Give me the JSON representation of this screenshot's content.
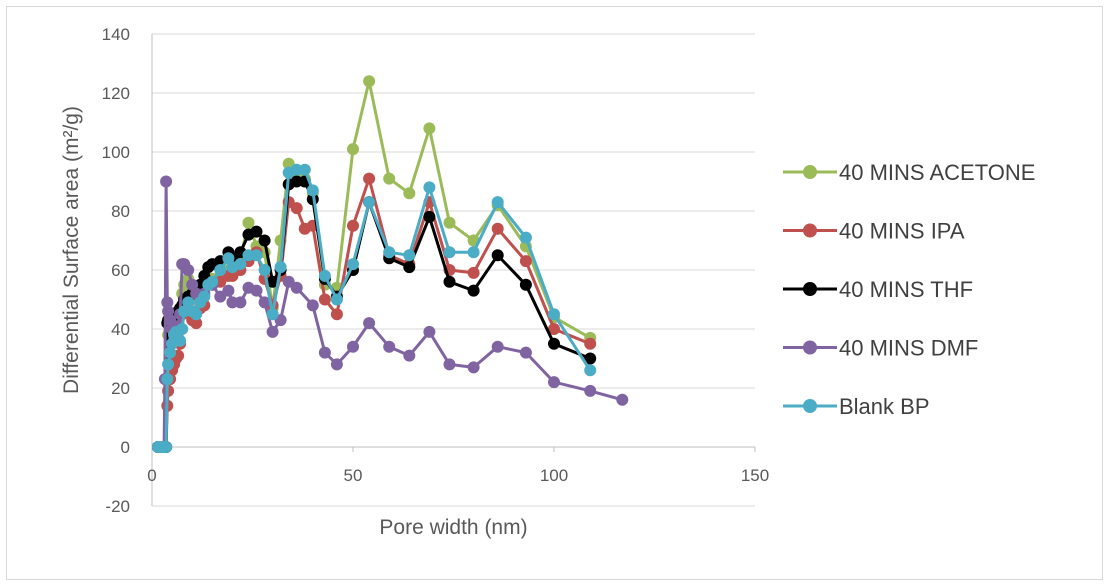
{
  "chart_data": {
    "type": "line",
    "title": "",
    "xlabel": "Pore width (nm)",
    "ylabel": "Differential Surface area (m²/g)",
    "xlim": [
      0,
      150
    ],
    "ylim": [
      -20,
      140
    ],
    "xticks": [
      0,
      50,
      100,
      150
    ],
    "yticks": [
      -20,
      0,
      20,
      40,
      60,
      80,
      100,
      120,
      140
    ],
    "grid": "horizontal",
    "legend_position": "right",
    "series": [
      {
        "name": "40 MINS ACETONE",
        "color": "#9bbb59",
        "points": [
          [
            1.5,
            0
          ],
          [
            2,
            0
          ],
          [
            2.5,
            0
          ],
          [
            3,
            0
          ],
          [
            3.5,
            0
          ],
          [
            3.8,
            23
          ],
          [
            4,
            38
          ],
          [
            4.5,
            42
          ],
          [
            5,
            45
          ],
          [
            5.5,
            44
          ],
          [
            6,
            44
          ],
          [
            6.5,
            45
          ],
          [
            7,
            47
          ],
          [
            7.5,
            52
          ],
          [
            8,
            55
          ],
          [
            9,
            57
          ],
          [
            10,
            50
          ],
          [
            11,
            50
          ],
          [
            12,
            51
          ],
          [
            13,
            53
          ],
          [
            14,
            57
          ],
          [
            15,
            57
          ],
          [
            17,
            58
          ],
          [
            19,
            60
          ],
          [
            20,
            58
          ],
          [
            22,
            64
          ],
          [
            24,
            76
          ],
          [
            26,
            68
          ],
          [
            28,
            66
          ],
          [
            30,
            47
          ],
          [
            32,
            70
          ],
          [
            34,
            96
          ],
          [
            36,
            93
          ],
          [
            38,
            91
          ],
          [
            40,
            86
          ],
          [
            43,
            55
          ],
          [
            46,
            54
          ],
          [
            50,
            101
          ],
          [
            54,
            124
          ],
          [
            59,
            91
          ],
          [
            64,
            86
          ],
          [
            69,
            108
          ],
          [
            74,
            76
          ],
          [
            80,
            70
          ],
          [
            86,
            82
          ],
          [
            93,
            68
          ],
          [
            100,
            44
          ],
          [
            109,
            37
          ]
        ]
      },
      {
        "name": "40 MINS IPA",
        "color": "#c0504d",
        "points": [
          [
            1.5,
            0
          ],
          [
            2,
            0
          ],
          [
            2.5,
            0
          ],
          [
            3,
            0
          ],
          [
            3.5,
            0
          ],
          [
            3.8,
            14
          ],
          [
            4,
            19
          ],
          [
            4.5,
            23
          ],
          [
            5,
            26
          ],
          [
            5.5,
            28
          ],
          [
            6,
            30
          ],
          [
            6.5,
            31
          ],
          [
            7,
            35
          ],
          [
            7.5,
            45
          ],
          [
            8,
            50
          ],
          [
            9,
            47
          ],
          [
            10,
            43
          ],
          [
            11,
            42
          ],
          [
            12,
            47
          ],
          [
            13,
            48
          ],
          [
            14,
            55
          ],
          [
            15,
            55
          ],
          [
            17,
            56
          ],
          [
            19,
            58
          ],
          [
            20,
            58
          ],
          [
            22,
            60
          ],
          [
            24,
            63
          ],
          [
            26,
            66
          ],
          [
            28,
            57
          ],
          [
            30,
            48
          ],
          [
            32,
            58
          ],
          [
            34,
            83
          ],
          [
            36,
            81
          ],
          [
            38,
            74
          ],
          [
            40,
            75
          ],
          [
            43,
            50
          ],
          [
            46,
            45
          ],
          [
            50,
            75
          ],
          [
            54,
            91
          ],
          [
            59,
            65
          ],
          [
            64,
            62
          ],
          [
            69,
            83
          ],
          [
            74,
            60
          ],
          [
            80,
            59
          ],
          [
            86,
            74
          ],
          [
            93,
            63
          ],
          [
            100,
            40
          ],
          [
            109,
            35
          ]
        ]
      },
      {
        "name": "40 MINS THF",
        "color": "#000000",
        "points": [
          [
            1.5,
            0
          ],
          [
            2,
            0
          ],
          [
            2.5,
            0
          ],
          [
            3,
            0
          ],
          [
            3.5,
            0
          ],
          [
            3.8,
            42
          ],
          [
            4,
            43
          ],
          [
            4.5,
            44
          ],
          [
            5,
            45
          ],
          [
            5.5,
            44
          ],
          [
            6,
            45
          ],
          [
            6.5,
            46
          ],
          [
            7,
            47
          ],
          [
            7.5,
            48
          ],
          [
            8,
            50
          ],
          [
            9,
            51
          ],
          [
            10,
            52
          ],
          [
            11,
            53
          ],
          [
            12,
            55
          ],
          [
            13,
            58
          ],
          [
            14,
            61
          ],
          [
            15,
            62
          ],
          [
            17,
            63
          ],
          [
            19,
            66
          ],
          [
            20,
            64
          ],
          [
            22,
            66
          ],
          [
            24,
            72
          ],
          [
            26,
            73
          ],
          [
            28,
            70
          ],
          [
            30,
            56
          ],
          [
            32,
            60
          ],
          [
            34,
            89
          ],
          [
            36,
            90
          ],
          [
            38,
            90
          ],
          [
            40,
            84
          ],
          [
            43,
            57
          ],
          [
            46,
            51
          ],
          [
            50,
            60
          ],
          [
            54,
            83
          ],
          [
            59,
            64
          ],
          [
            64,
            61
          ],
          [
            69,
            78
          ],
          [
            74,
            56
          ],
          [
            80,
            53
          ],
          [
            86,
            65
          ],
          [
            93,
            55
          ],
          [
            100,
            35
          ],
          [
            109,
            30
          ]
        ]
      },
      {
        "name": "40 MINS DMF",
        "color": "#8064a2",
        "points": [
          [
            1.5,
            0
          ],
          [
            2,
            0
          ],
          [
            2.5,
            0
          ],
          [
            3,
            0
          ],
          [
            3.2,
            23
          ],
          [
            3.5,
            90
          ],
          [
            3.8,
            49
          ],
          [
            4,
            46
          ],
          [
            4.5,
            43
          ],
          [
            5,
            40
          ],
          [
            5.5,
            38
          ],
          [
            6,
            38
          ],
          [
            6.5,
            41
          ],
          [
            7,
            45
          ],
          [
            7.5,
            62
          ],
          [
            8,
            62
          ],
          [
            9,
            60
          ],
          [
            10,
            55
          ],
          [
            11,
            52
          ],
          [
            12,
            50
          ],
          [
            13,
            52
          ],
          [
            15,
            55
          ],
          [
            17,
            51
          ],
          [
            19,
            53
          ],
          [
            20,
            49
          ],
          [
            22,
            49
          ],
          [
            24,
            54
          ],
          [
            26,
            53
          ],
          [
            28,
            49
          ],
          [
            30,
            39
          ],
          [
            32,
            43
          ],
          [
            34,
            56
          ],
          [
            36,
            54
          ],
          [
            40,
            48
          ],
          [
            43,
            32
          ],
          [
            46,
            28
          ],
          [
            50,
            34
          ],
          [
            54,
            42
          ],
          [
            59,
            34
          ],
          [
            64,
            31
          ],
          [
            69,
            39
          ],
          [
            74,
            28
          ],
          [
            80,
            27
          ],
          [
            86,
            34
          ],
          [
            93,
            32
          ],
          [
            100,
            22
          ],
          [
            109,
            19
          ],
          [
            117,
            16
          ]
        ]
      },
      {
        "name": "Blank BP",
        "color": "#4bacc6",
        "points": [
          [
            1.5,
            0
          ],
          [
            2,
            0
          ],
          [
            2.5,
            0
          ],
          [
            3,
            0
          ],
          [
            3.5,
            0
          ],
          [
            3.8,
            23
          ],
          [
            4,
            28
          ],
          [
            4.5,
            32
          ],
          [
            5,
            35
          ],
          [
            5.5,
            38
          ],
          [
            6,
            39
          ],
          [
            6.5,
            37
          ],
          [
            7,
            36
          ],
          [
            7.5,
            40
          ],
          [
            8,
            46
          ],
          [
            9,
            49
          ],
          [
            10,
            46
          ],
          [
            11,
            45
          ],
          [
            12,
            49
          ],
          [
            13,
            51
          ],
          [
            14,
            55
          ],
          [
            15,
            56
          ],
          [
            17,
            60
          ],
          [
            19,
            64
          ],
          [
            20,
            61
          ],
          [
            22,
            62
          ],
          [
            24,
            65
          ],
          [
            26,
            65
          ],
          [
            28,
            60
          ],
          [
            30,
            45
          ],
          [
            32,
            61
          ],
          [
            34,
            93
          ],
          [
            36,
            94
          ],
          [
            38,
            94
          ],
          [
            40,
            87
          ],
          [
            43,
            58
          ],
          [
            46,
            50
          ],
          [
            50,
            62
          ],
          [
            54,
            83
          ],
          [
            59,
            66
          ],
          [
            64,
            65
          ],
          [
            69,
            88
          ],
          [
            74,
            66
          ],
          [
            80,
            66
          ],
          [
            86,
            83
          ],
          [
            93,
            71
          ],
          [
            100,
            45
          ],
          [
            109,
            26
          ]
        ]
      }
    ]
  }
}
